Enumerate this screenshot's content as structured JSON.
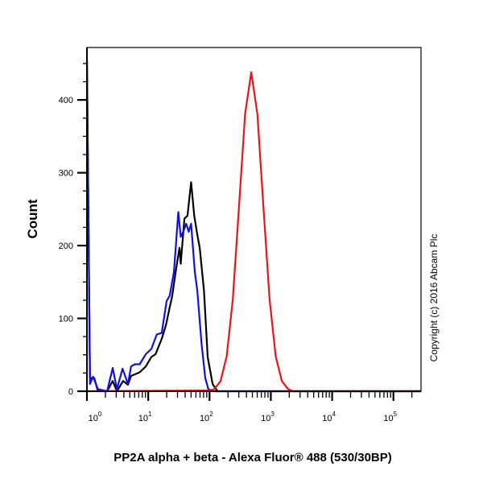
{
  "chart_data": {
    "type": "line",
    "title": "",
    "xlabel": "PP2A alpha + beta - Alexa Fluor® 488 (530/30BP)",
    "ylabel": "Count",
    "x_scale": "log10",
    "xlim_log10": [
      0,
      5.45
    ],
    "ylim": [
      0,
      472
    ],
    "yticks": [
      0,
      100,
      200,
      300,
      400
    ],
    "xticks": [
      {
        "base": "10",
        "exp": "0",
        "log": 0
      },
      {
        "base": "10",
        "exp": "1",
        "log": 1
      },
      {
        "base": "10",
        "exp": "2",
        "log": 2
      },
      {
        "base": "10",
        "exp": "3",
        "log": 3
      },
      {
        "base": "10",
        "exp": "4",
        "log": 4
      },
      {
        "base": "10",
        "exp": "5",
        "log": 5
      }
    ],
    "annotation": "Copyright (c) 2016 Abcam Plc",
    "series": [
      {
        "name": "black",
        "color": "#000000",
        "x_log10": [
          0,
          0.05,
          0.12,
          0.18,
          0.33,
          0.42,
          0.49,
          0.59,
          0.67,
          0.72,
          0.86,
          0.96,
          1.05,
          1.12,
          1.22,
          1.29,
          1.34,
          1.39,
          1.46,
          1.51,
          1.53,
          1.59,
          1.64,
          1.7,
          1.75,
          1.8,
          1.84,
          1.91,
          1.97,
          2.05,
          2.13,
          5.45
        ],
        "y": [
          454,
          18,
          18,
          0,
          0,
          14,
          0,
          14,
          9,
          21,
          26,
          34,
          47,
          51,
          72,
          91,
          111,
          130,
          171,
          197,
          175,
          237,
          241,
          287,
          241,
          215,
          197,
          138,
          47,
          10,
          0,
          0
        ]
      },
      {
        "name": "blue",
        "color": "#1010e0",
        "x_log10": [
          0,
          0.05,
          0.1,
          0.18,
          0.33,
          0.42,
          0.49,
          0.58,
          0.67,
          0.72,
          0.78,
          0.86,
          0.96,
          1.05,
          1.14,
          1.22,
          1.3,
          1.35,
          1.42,
          1.49,
          1.53,
          1.57,
          1.62,
          1.66,
          1.7,
          1.76,
          1.8,
          1.87,
          1.93,
          1.98,
          2.05,
          5.45
        ],
        "y": [
          454,
          10,
          20,
          3,
          0,
          32,
          3,
          31,
          10,
          34,
          37,
          37,
          51,
          58,
          78,
          80,
          124,
          131,
          164,
          246,
          212,
          219,
          230,
          219,
          230,
          164,
          138,
          65,
          18,
          3,
          0,
          0
        ]
      },
      {
        "name": "red",
        "color": "#e8141c",
        "x_log10": [
          0,
          2.0,
          2.08,
          2.18,
          2.28,
          2.38,
          2.48,
          2.58,
          2.68,
          2.78,
          2.88,
          2.98,
          3.08,
          3.18,
          3.28,
          3.36,
          5.45
        ],
        "y": [
          0,
          1,
          3,
          14,
          48,
          126,
          252,
          381,
          438,
          381,
          252,
          126,
          48,
          14,
          3,
          0,
          0
        ]
      }
    ]
  }
}
